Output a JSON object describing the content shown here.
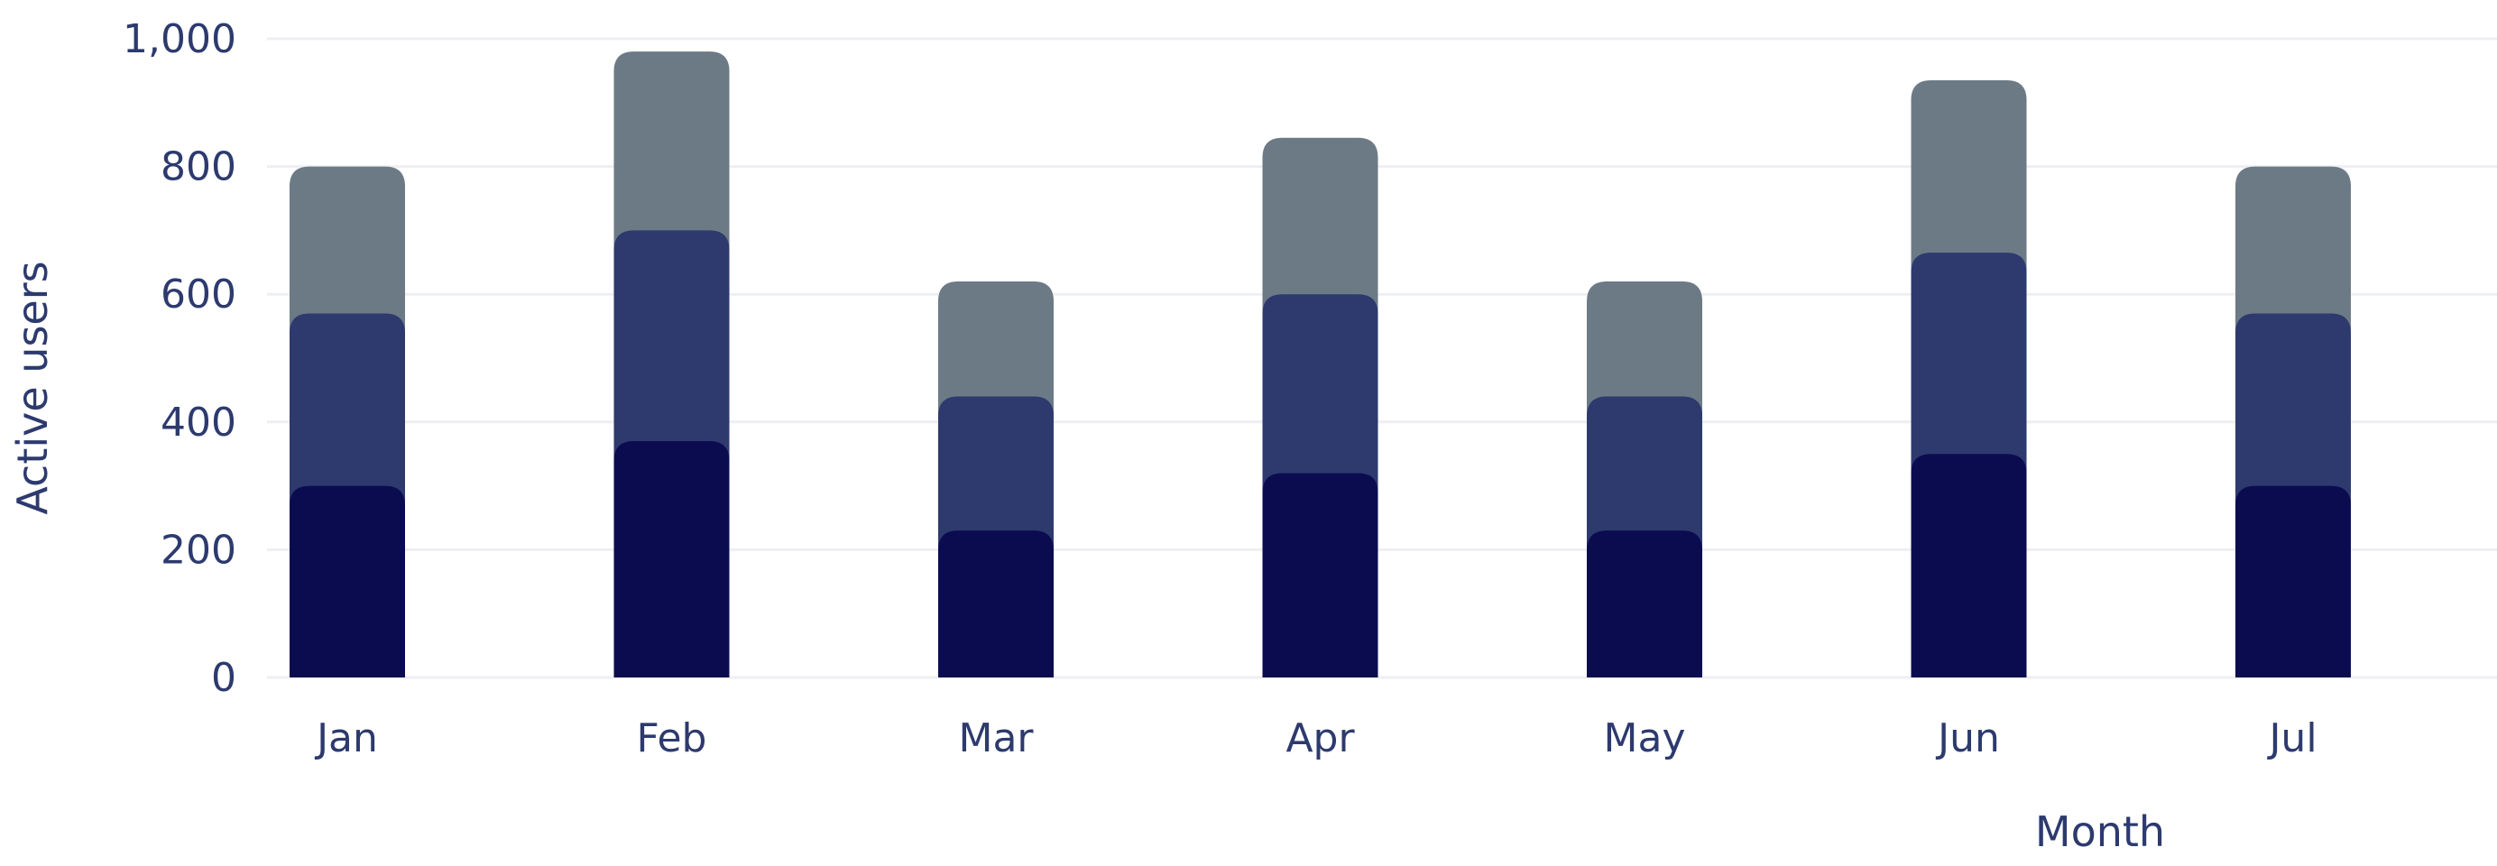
{
  "chart_data": {
    "type": "bar",
    "stacked": true,
    "categories": [
      "Jan",
      "Feb",
      "Mar",
      "Apr",
      "May",
      "Jun",
      "Jul"
    ],
    "series": [
      {
        "values": [
          300,
          370,
          230,
          320,
          230,
          350,
          300
        ],
        "color": "#0b0c50"
      },
      {
        "values": [
          270,
          330,
          210,
          280,
          210,
          315,
          270
        ],
        "color": "#2e3a6d"
      },
      {
        "values": [
          230,
          280,
          180,
          245,
          180,
          270,
          230
        ],
        "color": "#6c7a86"
      }
    ],
    "ylim": [
      0,
      1000
    ],
    "yticks": [
      0,
      200,
      400,
      600,
      800,
      1000
    ],
    "ytick_labels": [
      "0",
      "200",
      "400",
      "600",
      "800",
      "1,000"
    ],
    "xlabel": "Month",
    "ylabel": "Active users",
    "grid": true,
    "legend": "none"
  }
}
